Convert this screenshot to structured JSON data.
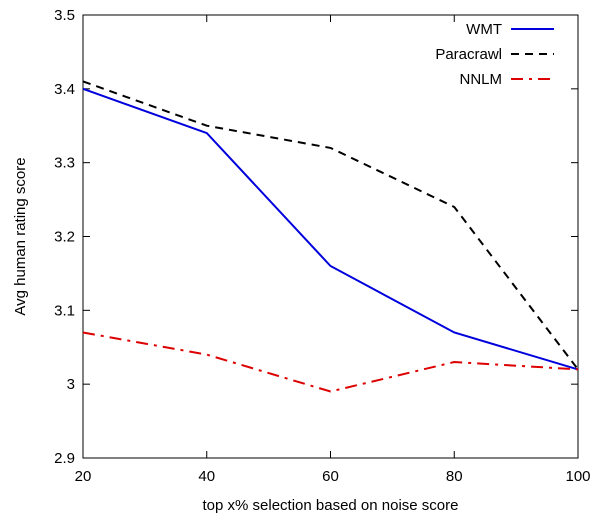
{
  "chart_data": {
    "type": "line",
    "title": "",
    "xlabel": "top x% selection based on noise score",
    "ylabel": "Avg human rating score",
    "xlim": [
      20,
      100
    ],
    "ylim": [
      2.9,
      3.5
    ],
    "x_ticks": [
      20,
      40,
      60,
      80,
      100
    ],
    "y_ticks": [
      2.9,
      3.0,
      3.1,
      3.2,
      3.3,
      3.4,
      3.5
    ],
    "y_tick_labels": [
      "2.9",
      "3",
      "3.1",
      "3.2",
      "3.3",
      "3.4",
      "3.5"
    ],
    "grid": false,
    "legend_position": "top-right",
    "x": [
      20,
      40,
      60,
      80,
      100
    ],
    "series": [
      {
        "name": "WMT",
        "values": [
          3.4,
          3.34,
          3.16,
          3.07,
          3.02
        ],
        "color": "#0000dd",
        "dash": "solid"
      },
      {
        "name": "Paracrawl",
        "values": [
          3.41,
          3.35,
          3.32,
          3.24,
          3.02
        ],
        "color": "#000000",
        "dash": "dashed"
      },
      {
        "name": "NNLM",
        "values": [
          3.07,
          3.04,
          2.99,
          3.03,
          3.02
        ],
        "color": "#dd0000",
        "dash": "dash-dot"
      }
    ]
  }
}
